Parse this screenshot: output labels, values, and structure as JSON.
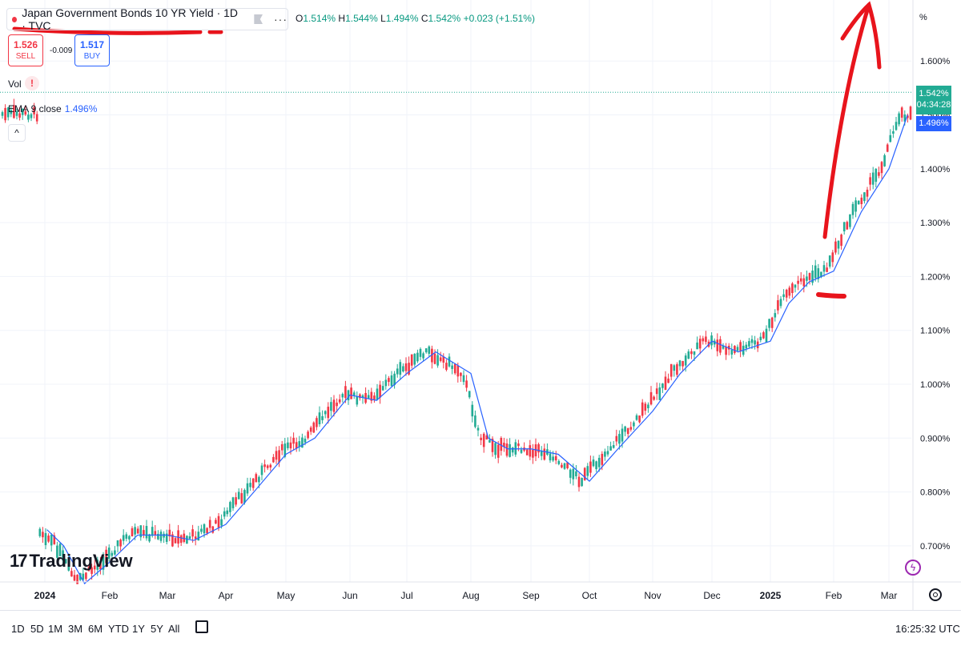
{
  "header": {
    "symbol_title": "Japan Government Bonds 10 YR Yield · 1D · TVC",
    "ohlc": {
      "o_label": "O",
      "o": "1.514%",
      "h_label": "H",
      "h": "1.544%",
      "l_label": "L",
      "l": "1.494%",
      "c_label": "C",
      "c": "1.542%",
      "change": "+0.023 (+1.51%)"
    },
    "more_icon": "···"
  },
  "trade": {
    "sell_value": "1.526",
    "sell_label": "SELL",
    "spread": "-0.009",
    "buy_value": "1.517",
    "buy_label": "BUY"
  },
  "indicators": {
    "vol_label": "Vol",
    "vol_warning": "!",
    "ema_label": "EMA 9 close",
    "ema_value": "1.496%",
    "collapse": "^"
  },
  "price_scale": {
    "unit": "%",
    "close_badge": "1.542%",
    "countdown": "04:34:28",
    "ema_badge": "1.496%"
  },
  "brand": {
    "logo_mark": "17",
    "logo_text": "TradingView"
  },
  "bottom": {
    "ranges": [
      "1D",
      "5D",
      "1M",
      "3M",
      "6M",
      "YTD",
      "1Y",
      "5Y",
      "All"
    ],
    "time": "16:25:32 UTC"
  },
  "colors": {
    "up": "#22ab94",
    "down": "#f23645",
    "ema": "#2962ff",
    "annotation": "#e8141c",
    "grid": "#f0f3fa"
  },
  "chart_data": {
    "type": "candlestick",
    "title": "Japan Government Bonds 10 YR Yield",
    "interval": "1D",
    "y_unit": "%",
    "ylim": [
      0.65,
      1.68
    ],
    "y_ticks": [
      0.7,
      0.8,
      0.9,
      1.0,
      1.1,
      1.2,
      1.3,
      1.4,
      1.5,
      1.6
    ],
    "y_tick_labels": [
      "0.700%",
      "0.800%",
      "0.900%",
      "1.000%",
      "1.100%",
      "1.200%",
      "1.300%",
      "1.400%",
      "1.500%",
      "1.600%"
    ],
    "x_labels": [
      "2024",
      "Feb",
      "Mar",
      "Apr",
      "May",
      "Jun",
      "Jul",
      "Aug",
      "Sep",
      "Oct",
      "Nov",
      "Dec",
      "2025",
      "Feb",
      "Mar"
    ],
    "bold_x_labels": [
      "2024",
      "2025"
    ],
    "last_close": 1.542,
    "series": [
      {
        "name": "EMA 9 close",
        "color": "#2962ff",
        "points": [
          [
            "2024-01-02",
            0.73
          ],
          [
            "2024-01-10",
            0.7
          ],
          [
            "2024-01-20",
            0.63
          ],
          [
            "2024-02-01",
            0.67
          ],
          [
            "2024-02-15",
            0.72
          ],
          [
            "2024-03-01",
            0.72
          ],
          [
            "2024-03-15",
            0.71
          ],
          [
            "2024-04-01",
            0.74
          ],
          [
            "2024-04-15",
            0.8
          ],
          [
            "2024-05-01",
            0.87
          ],
          [
            "2024-05-15",
            0.9
          ],
          [
            "2024-06-01",
            0.98
          ],
          [
            "2024-06-15",
            0.97
          ],
          [
            "2024-07-01",
            1.02
          ],
          [
            "2024-07-15",
            1.06
          ],
          [
            "2024-08-01",
            1.02
          ],
          [
            "2024-08-10",
            0.9
          ],
          [
            "2024-08-20",
            0.88
          ],
          [
            "2024-09-01",
            0.88
          ],
          [
            "2024-09-15",
            0.87
          ],
          [
            "2024-10-01",
            0.82
          ],
          [
            "2024-10-15",
            0.88
          ],
          [
            "2024-11-01",
            0.95
          ],
          [
            "2024-11-15",
            1.02
          ],
          [
            "2024-12-01",
            1.08
          ],
          [
            "2024-12-15",
            1.06
          ],
          [
            "2025-01-01",
            1.08
          ],
          [
            "2025-01-10",
            1.15
          ],
          [
            "2025-01-20",
            1.19
          ],
          [
            "2025-02-01",
            1.21
          ],
          [
            "2025-02-15",
            1.32
          ],
          [
            "2025-03-01",
            1.4
          ],
          [
            "2025-03-10",
            1.5
          ]
        ]
      }
    ],
    "annotations": [
      {
        "type": "underline",
        "target": "symbol title"
      },
      {
        "type": "arrow",
        "from_date": "2025-01-24",
        "from_value": 1.27,
        "to_date": "2025-02-28",
        "to_value": 1.7
      },
      {
        "type": "dash",
        "date": "2025-01-27",
        "value": 1.165
      }
    ]
  }
}
